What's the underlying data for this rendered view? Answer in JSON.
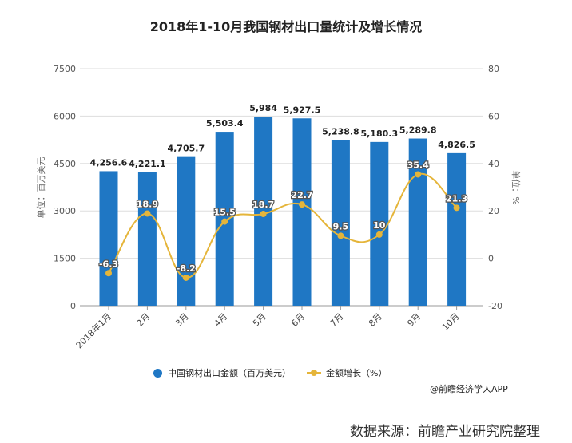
{
  "chart_data": {
    "type": "bar",
    "title": "2018年1-10月我国钢材出口量统计及增长情况",
    "categories": [
      "2018年1月",
      "2月",
      "3月",
      "4月",
      "5月",
      "6月",
      "7月",
      "8月",
      "9月",
      "10月"
    ],
    "series": [
      {
        "name": "中国钢材出口金额（百万美元）",
        "type": "bar",
        "axis": "left",
        "color": "#1f77c4",
        "values": [
          4256.6,
          4221.1,
          4705.7,
          5503.4,
          5984,
          5927.5,
          5238.8,
          5180.3,
          5289.8,
          4826.5
        ],
        "labels": [
          "4,256.6",
          "4,221.1",
          "4,705.7",
          "5,503.4",
          "5,984",
          "5,927.5",
          "5,238.8",
          "5,180.3",
          "5,289.8",
          "4,826.5"
        ]
      },
      {
        "name": "金额增长（%）",
        "type": "line",
        "axis": "right",
        "color": "#e5b53a",
        "values": [
          -6.3,
          18.9,
          -8.2,
          15.5,
          18.7,
          22.7,
          9.5,
          10,
          35.4,
          21.3
        ],
        "labels": [
          "-6.3",
          "18.9",
          "-8.2",
          "15.5",
          "18.7",
          "22.7",
          "9.5",
          "10",
          "35.4",
          "21.3"
        ]
      }
    ],
    "ylabel": "单位：百万美元",
    "y2label": "单位：%",
    "ylim": [
      0,
      7500
    ],
    "y2lim": [
      -20,
      80
    ],
    "yticks": [
      "0",
      "1500",
      "3000",
      "4500",
      "6000",
      "7500"
    ],
    "y2ticks": [
      "-20",
      "0",
      "20",
      "40",
      "60",
      "80"
    ],
    "grid": true,
    "legend_position": "bottom"
  },
  "credit": "@前瞻经济学人APP",
  "source": "数据来源：前瞻产业研究院整理"
}
